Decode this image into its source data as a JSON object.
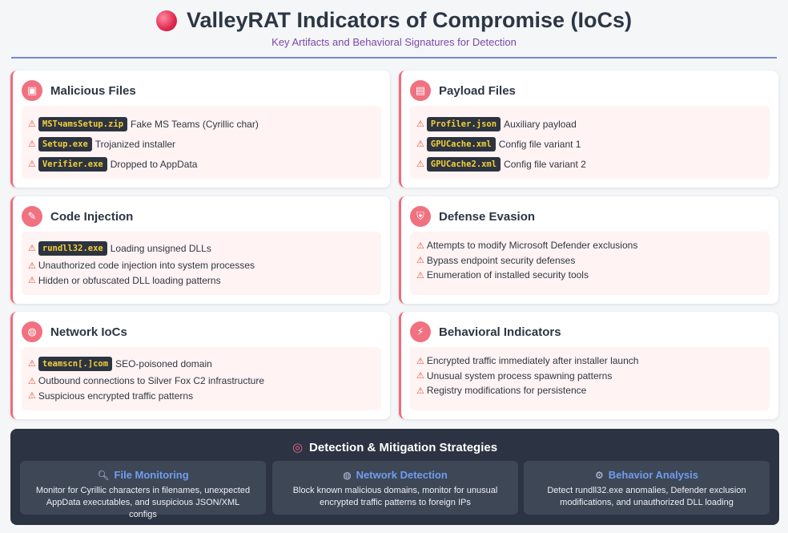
{
  "header": {
    "title": "ValleyRAT Indicators of Compromise (IoCs)",
    "subtitle": "Key Artifacts and Behavioral Signatures for Detection"
  },
  "colors": {
    "accent": "#ef6b7c",
    "code_bg": "#2d3440",
    "code_text": "#f2cf3b",
    "panel": "#2c3443"
  },
  "cards": {
    "malicious_files": {
      "icon": "package-icon",
      "title": "Malicious Files",
      "items": [
        {
          "code": "MSTчamsSetup.zip",
          "text": "Fake MS Teams (Cyrillic char)"
        },
        {
          "code": "Setup.exe",
          "text": "Trojanized installer"
        },
        {
          "code": "Verifier.exe",
          "text": "Dropped to AppData"
        }
      ]
    },
    "payload_files": {
      "icon": "document-icon",
      "title": "Payload Files",
      "items": [
        {
          "code": "Profiler.json",
          "text": "Auxiliary payload"
        },
        {
          "code": "GPUCache.xml",
          "text": "Config file variant 1"
        },
        {
          "code": "GPUCache2.xml",
          "text": "Config file variant 2"
        }
      ]
    },
    "code_injection": {
      "icon": "syringe-icon",
      "title": "Code Injection",
      "items": [
        {
          "code": "rundll32.exe",
          "text": "Loading unsigned DLLs"
        },
        {
          "text": "Unauthorized code injection into system processes"
        },
        {
          "text": "Hidden or obfuscated DLL loading patterns"
        }
      ]
    },
    "defense_evasion": {
      "icon": "shield-icon",
      "title": "Defense Evasion",
      "items": [
        {
          "text": "Attempts to modify Microsoft Defender exclusions"
        },
        {
          "text": "Bypass endpoint security defenses"
        },
        {
          "text": "Enumeration of installed security tools"
        }
      ]
    },
    "network_iocs": {
      "icon": "globe-icon",
      "title": "Network IoCs",
      "items": [
        {
          "code": "teamscn[.]com",
          "text": "SEO-poisoned domain"
        },
        {
          "text": "Outbound connections to Silver Fox C2 infrastructure"
        },
        {
          "text": "Suspicious encrypted traffic patterns"
        }
      ]
    },
    "behavioral_indicators": {
      "icon": "lightning-icon",
      "title": "Behavioral Indicators",
      "items": [
        {
          "text": "Encrypted traffic immediately after installer launch"
        },
        {
          "text": "Unusual system process spawning patterns"
        },
        {
          "text": "Registry modifications for persistence"
        }
      ]
    }
  },
  "strategies": {
    "title": "Detection & Mitigation Strategies",
    "icon": "target-icon",
    "boxes": [
      {
        "icon": "magnifier-icon",
        "title": "File Monitoring",
        "desc": "Monitor for Cyrillic characters in filenames, unexpected AppData executables, and suspicious JSON/XML configs"
      },
      {
        "icon": "globe-icon",
        "title": "Network Detection",
        "desc": "Block known malicious domains, monitor for unusual encrypted traffic patterns to foreign IPs"
      },
      {
        "icon": "gear-icon",
        "title": "Behavior Analysis",
        "desc": "Detect rundll32.exe anomalies, Defender exclusion modifications, and unauthorized DLL loading"
      }
    ]
  }
}
